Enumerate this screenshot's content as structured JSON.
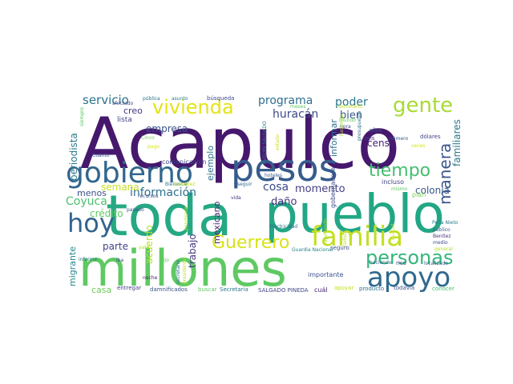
{
  "words": [
    {
      "text": "Acapulco",
      "color": "#46186d"
    },
    {
      "text": "toda",
      "color": "#25a883"
    },
    {
      "text": "pueblo",
      "color": "#22a785"
    },
    {
      "text": "millones",
      "color": "#5ec962"
    },
    {
      "text": "pesos",
      "color": "#365c8d"
    },
    {
      "text": "gobierno",
      "color": "#31668e"
    },
    {
      "text": "familia",
      "color": "#c2df23"
    },
    {
      "text": "apoyo",
      "color": "#30698e"
    },
    {
      "text": "vivienda",
      "color": "#e3e418"
    },
    {
      "text": "gente",
      "color": "#a8db34"
    },
    {
      "text": "hoy",
      "color": "#32648e"
    },
    {
      "text": "personas",
      "color": "#32b67a"
    },
    {
      "text": "tiempo",
      "color": "#44bf70"
    },
    {
      "text": "Guerrero",
      "color": "#d8e219"
    },
    {
      "text": "manera",
      "color": "#39568c"
    },
    {
      "text": "servicio",
      "color": "#2c738e"
    },
    {
      "text": "programa",
      "color": "#2e6e8e"
    },
    {
      "text": "poder",
      "color": "#2a768e"
    },
    {
      "text": "huracán",
      "color": "#3e4a89"
    },
    {
      "text": "bien",
      "color": "#39568c"
    },
    {
      "text": "empresa",
      "color": "#3b528b"
    },
    {
      "text": "información",
      "color": "#2d708e"
    },
    {
      "text": "cosa",
      "color": "#3e4a89"
    },
    {
      "text": "momento",
      "color": "#433e85"
    },
    {
      "text": "daño",
      "color": "#46337e"
    },
    {
      "text": "colonia",
      "color": "#38598c"
    },
    {
      "text": "familiares",
      "color": "#2a788e"
    },
    {
      "text": "Coyuca",
      "color": "#4ac16d"
    },
    {
      "text": "crédito",
      "color": "#5ec962"
    },
    {
      "text": "semana",
      "color": "#c8e020"
    },
    {
      "text": "menos",
      "color": "#3b528b"
    },
    {
      "text": "parte",
      "color": "#414487"
    },
    {
      "text": "acuerdo",
      "color": "#b5de2b"
    },
    {
      "text": "trabajo",
      "color": "#453882"
    },
    {
      "text": "mexicano",
      "color": "#482475"
    },
    {
      "text": "ejemplo",
      "color": "#2d708e"
    },
    {
      "text": "creo",
      "color": "#453781"
    },
    {
      "text": "lista",
      "color": "#404588"
    },
    {
      "text": "censo",
      "color": "#482173"
    },
    {
      "text": "informar",
      "color": "#2d708e"
    },
    {
      "text": "periodista",
      "color": "#2a788e"
    },
    {
      "text": "migrante",
      "color": "#23898e"
    },
    {
      "text": "casa",
      "color": "#6ccd5a"
    },
    {
      "text": "gobernadora",
      "color": "#3e4a89"
    },
    {
      "text": "comunicación",
      "color": "#404588"
    },
    {
      "text": "importante",
      "color": "#3b528b"
    },
    {
      "text": "incluso",
      "color": "#414487"
    },
    {
      "text": "plan",
      "color": "#7ad151"
    },
    {
      "text": "producto",
      "color": "#2d708e"
    },
    {
      "text": "conocer",
      "color": "#46c06f"
    },
    {
      "text": "todavía",
      "color": "#3b528b"
    },
    {
      "text": "apoyar",
      "color": "#c2df23"
    },
    {
      "text": "cuál",
      "color": "#482475"
    },
    {
      "text": "SALGADO PINEDA",
      "color": "#3f4788"
    },
    {
      "text": "Secretaría",
      "color": "#2a788e"
    },
    {
      "text": "buscar",
      "color": "#5ec962"
    },
    {
      "text": "damnificados",
      "color": "#3b528b"
    },
    {
      "text": "entregar",
      "color": "#433e85"
    },
    {
      "text": "noche",
      "color": "#481a6c"
    },
    {
      "text": "dijo",
      "color": "#5ec962"
    },
    {
      "text": "iba",
      "color": "#3e4a89"
    },
    {
      "text": "Cinco",
      "color": "#75d054"
    },
    {
      "text": "pago",
      "color": "#d8e219"
    },
    {
      "text": "recursos",
      "color": "#3b528b"
    },
    {
      "text": "Bienestar",
      "color": "#2a788e"
    },
    {
      "text": "pasado",
      "color": "#3b528b"
    },
    {
      "text": "pendiente",
      "color": "#b5de2b"
    },
    {
      "text": "hoteles",
      "color": "#38598c"
    },
    {
      "text": "seguir",
      "color": "#31688e"
    },
    {
      "text": "vida",
      "color": "#46337e"
    },
    {
      "text": "seguro",
      "color": "#3e4a89"
    },
    {
      "text": "Electricidad",
      "color": "#2d708e"
    },
    {
      "text": "Guardia Nacional",
      "color": "#26828e"
    },
    {
      "text": "rico",
      "color": "#414487"
    },
    {
      "text": "haciendo",
      "color": "#31688e"
    },
    {
      "text": "localizado",
      "color": "#3b528b"
    },
    {
      "text": "público",
      "color": "#38598c"
    },
    {
      "text": "Benítez",
      "color": "#46337e"
    },
    {
      "text": "medio",
      "color": "#3e4a89"
    },
    {
      "text": "general",
      "color": "#b5de2b"
    },
    {
      "text": "dólares",
      "color": "#414487"
    },
    {
      "text": "seis",
      "color": "#443983"
    },
    {
      "text": "veces",
      "color": "#d0e11c"
    },
    {
      "text": "años",
      "color": "#3e4a89"
    },
    {
      "text": "número",
      "color": "#38598c"
    },
    {
      "text": "mundo",
      "color": "#5ec962"
    },
    {
      "text": "hora",
      "color": "#404588"
    },
    {
      "text": "mismo",
      "color": "#5ec962"
    },
    {
      "text": "Peña Nieto",
      "color": "#2a788e"
    },
    {
      "text": "presupuesto",
      "color": "#2d708e"
    },
    {
      "text": "secretario",
      "color": "#c2df23"
    },
    {
      "text": "hacienda",
      "color": "#a8db34"
    },
    {
      "text": "meses",
      "color": "#5ec962"
    },
    {
      "text": "pública",
      "color": "#2d708e"
    },
    {
      "text": "asunto",
      "color": "#2a788e"
    },
    {
      "text": "búsqueda",
      "color": "#3e4a89"
    },
    {
      "text": "afectado",
      "color": "#3e4a89"
    },
    {
      "text": "siempre",
      "color": "#5ec962"
    },
    {
      "text": "Cuánto",
      "color": "#3b528b"
    },
    {
      "text": "González",
      "color": "#c2df23"
    },
    {
      "text": "EVELYN SALGADO",
      "color": "#2a788e"
    },
    {
      "text": "estado",
      "color": "#c2df23"
    },
    {
      "text": "informe",
      "color": "#2d708e"
    },
    {
      "text": "yate",
      "color": "#a8db34"
    },
    {
      "text": "secretaria",
      "color": "#2d708e"
    },
    {
      "text": "presidente",
      "color": "#c2df23"
    },
    {
      "text": "apoyando",
      "color": "#a8db34"
    },
    {
      "text": "ciudad",
      "color": "#c2df23"
    },
    {
      "text": "todos",
      "color": "#b5de2b"
    }
  ]
}
